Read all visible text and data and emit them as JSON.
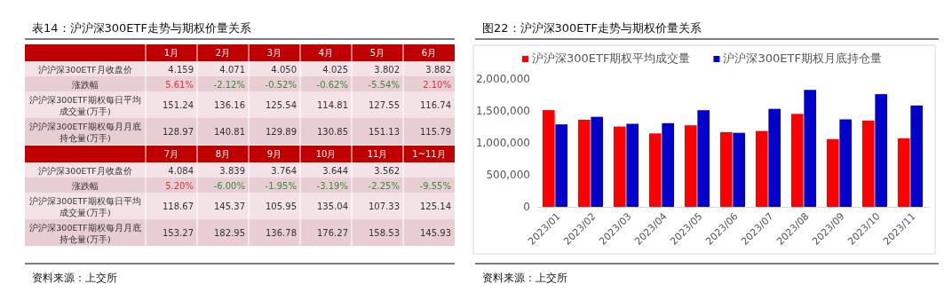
{
  "chart_data": [
    {
      "type": "heatmap",
      "title": "表14：沪沪深300ETF走势与期权价量关系",
      "categories": [
        "1月",
        "2月",
        "3月",
        "4月",
        "5月",
        "6月"
      ],
      "y_categories": [
        "沪沪深300ETF月收盘价",
        "涨跌幅",
        "沪沪深300ETF期权每日平均成交量(万手)",
        "沪沪深300ETF期权每月月底持仓量(万手)"
      ],
      "cells": [
        [
          4.159,
          4.071,
          4.05,
          4.025,
          3.802,
          3.882
        ],
        [
          5.61,
          -2.12,
          -0.52,
          -0.62,
          -5.54,
          2.1
        ],
        [
          151.24,
          136.16,
          125.54,
          114.81,
          127.55,
          116.74
        ],
        [
          128.97,
          140.81,
          129.89,
          130.85,
          151.13,
          115.79
        ]
      ],
      "cell_labels": [
        [
          "4.159",
          "4.071",
          "4.050",
          "4.025",
          "3.802",
          "3.882"
        ],
        [
          "5.61%",
          "-2.12%",
          "-0.52%",
          "-0.62%",
          "-5.54%",
          "2.10%"
        ],
        [
          "151.24",
          "136.16",
          "125.54",
          "114.81",
          "127.55",
          "116.74"
        ],
        [
          "128.97",
          "140.81",
          "129.89",
          "130.85",
          "151.13",
          "115.79"
        ]
      ]
    },
    {
      "type": "heatmap",
      "categories": [
        "7月",
        "8月",
        "9月",
        "10月",
        "11月",
        "1~11月"
      ],
      "y_categories": [
        "沪沪深300ETF月收盘价",
        "涨跌幅",
        "沪沪深300ETF期权每日平均成交量(万手)",
        "沪沪深300ETF期权每月月底持仓量(万手)"
      ],
      "cells": [
        [
          4.084,
          3.839,
          3.764,
          3.644,
          3.562,
          null
        ],
        [
          5.2,
          -6.0,
          -1.95,
          -3.19,
          -2.25,
          -9.55
        ],
        [
          118.67,
          145.37,
          105.95,
          135.04,
          107.33,
          125.14
        ],
        [
          153.27,
          182.95,
          136.78,
          176.27,
          158.53,
          145.93
        ]
      ],
      "cell_labels": [
        [
          "4.084",
          "3.839",
          "3.764",
          "3.644",
          "3.562",
          null
        ],
        [
          "5.20%",
          "-6.00%",
          "-1.95%",
          "-3.19%",
          "-2.25%",
          "-9.55%"
        ],
        [
          "118.67",
          "145.37",
          "105.95",
          "135.04",
          "107.33",
          "125.14"
        ],
        [
          "153.27",
          "182.95",
          "136.78",
          "176.27",
          "158.53",
          "145.93"
        ]
      ],
      "annotations": [
        "资料来源：上交所"
      ]
    },
    {
      "type": "bar",
      "title": "图22：沪沪深300ETF走势与期权价量关系",
      "categories": [
        "2023/01",
        "2023/02",
        "2023/03",
        "2023/04",
        "2023/05",
        "2023/06",
        "2023/07",
        "2023/08",
        "2023/09",
        "2023/10",
        "2023/11"
      ],
      "series": [
        {
          "name": "沪沪深300ETF期权平均成交量",
          "color": "#ff0000",
          "values": [
            1512400,
            1361600,
            1255400,
            1148100,
            1275500,
            1167400,
            1186700,
            1453700,
            1059500,
            1350400,
            1073300
          ]
        },
        {
          "name": "沪沪深300ETF期权月底持仓量",
          "color": "#0000cc",
          "values": [
            1289700,
            1408100,
            1298900,
            1308500,
            1511300,
            1157900,
            1532700,
            1829500,
            1367800,
            1762700,
            1585300
          ]
        }
      ],
      "ylim": [
        0,
        2000000
      ],
      "yticks": [
        {
          "value": 0,
          "label": "0"
        },
        {
          "value": 500000,
          "label": "500,000"
        },
        {
          "value": 1000000,
          "label": "1,000,000"
        },
        {
          "value": 1500000,
          "label": "1,500,000"
        },
        {
          "value": 2000000,
          "label": "2,000,000"
        }
      ],
      "grid": false,
      "legend": "top",
      "annotations": [
        "资料来源：上交所"
      ]
    }
  ]
}
